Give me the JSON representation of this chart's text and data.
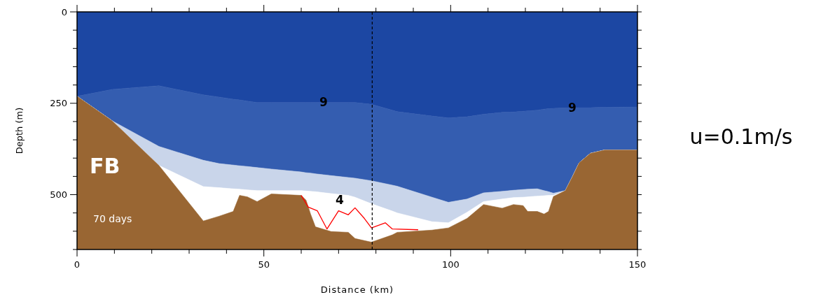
{
  "chart_data": {
    "type": "area",
    "stacked": true,
    "xlabel": "Distance (km)",
    "ylabel": "Depth (m)",
    "xlim": [
      0,
      150
    ],
    "ylim": [
      650,
      0
    ],
    "xticks": [
      0,
      {
        "value": 10,
        "label": null
      },
      {
        "value": 20,
        "label": null
      },
      {
        "value": 30,
        "label": null
      },
      {
        "value": 40,
        "label": null
      },
      50,
      {
        "value": 60,
        "label": null
      },
      {
        "value": 70,
        "label": null
      },
      {
        "value": 80,
        "label": null
      },
      {
        "value": 90,
        "label": null
      },
      100,
      {
        "value": 110,
        "label": null
      },
      {
        "value": 120,
        "label": null
      },
      {
        "value": 130,
        "label": null
      },
      {
        "value": 140,
        "label": null
      },
      150
    ],
    "yticks": [
      0,
      {
        "value": 50,
        "label": null
      },
      {
        "value": 100,
        "label": null
      },
      {
        "value": 150,
        "label": null
      },
      {
        "value": 200,
        "label": null
      },
      250,
      {
        "value": 300,
        "label": null
      },
      {
        "value": 350,
        "label": null
      },
      {
        "value": 400,
        "label": null
      },
      {
        "value": 450,
        "label": null
      },
      500,
      {
        "value": 550,
        "label": null
      },
      {
        "value": 600,
        "label": null
      },
      {
        "value": 650,
        "label": null
      }
    ],
    "x": [
      0,
      9.4,
      21.9,
      33.8,
      38,
      41.8,
      43.5,
      45.6,
      48.2,
      52,
      60,
      61.3,
      62.5,
      63.8,
      68,
      72.6,
      74.4,
      78.8,
      84.4,
      85.7,
      95,
      99.4,
      104.4,
      108.8,
      113.8,
      116.8,
      119.4,
      120.6,
      123.2,
      125,
      126.2,
      127.5,
      130.7,
      132.6,
      134.4,
      137.4,
      141.2,
      150
    ],
    "series": [
      {
        "color": "#1c47a3",
        "values": [
          231,
          212,
          202,
          227,
          233,
          239,
          241,
          244,
          248,
          248,
          248,
          248,
          248,
          248,
          248,
          248,
          248,
          253,
          269,
          273,
          285,
          290,
          287,
          280,
          275,
          274,
          272,
          271,
          269,
          266,
          265,
          264,
          263,
          263,
          262,
          262,
          261,
          260
        ]
      },
      {
        "color": "#345db0",
        "values": [
          0,
          86,
          166,
          179,
          182,
          180,
          180,
          179,
          178,
          182,
          190,
          192,
          193,
          195,
          200,
          205,
          207,
          209,
          205,
          204,
          222,
          231,
          225,
          215,
          216,
          214,
          214,
          214,
          215,
          223,
          227,
          232,
          226,
          188,
          151,
          125,
          117,
          118
        ]
      },
      {
        "color": "#c9d5ea",
        "values": [
          0,
          0,
          52,
          72,
          66,
          65,
          64,
          64,
          63,
          59,
          51,
          50,
          50,
          49,
          49,
          49,
          52,
          63,
          71,
          73,
          67,
          56,
          36,
          24,
          21,
          20,
          21,
          21,
          20,
          14,
          10,
          6,
          0,
          0,
          0,
          0,
          0,
          0
        ]
      },
      {
        "color": "#ffffff",
        "values": [
          0,
          0,
          0,
          94,
          78,
          62,
          17,
          19,
          30,
          9,
          13,
          25,
          62,
          96,
          104,
          101,
          113,
          105,
          65,
          53,
          23,
          14,
          17,
          8,
          25,
          19,
          23,
          40,
          42,
          50,
          44,
          3,
          0,
          0,
          0,
          0,
          0,
          0
        ]
      },
      {
        "color": "#996633",
        "values": [
          419,
          352,
          230,
          78,
          91,
          104,
          148,
          144,
          131,
          152,
          148,
          135,
          97,
          62,
          49,
          47,
          30,
          20,
          40,
          47,
          53,
          59,
          85,
          123,
          113,
          123,
          120,
          104,
          104,
          97,
          104,
          145,
          161,
          199,
          237,
          263,
          272,
          272
        ]
      },
      {
        "type": "line",
        "color": "#ff0000",
        "x": [
          60,
          61.9,
          64.3,
          66.9,
          70,
          72.6,
          74.4,
          76.9,
          78.8,
          82.5,
          84.4,
          91.3
        ],
        "values": [
          502,
          534,
          544,
          594,
          544,
          555,
          536,
          565,
          591,
          577,
          594,
          596
        ]
      }
    ],
    "ref_lines": [
      {
        "axis": "x",
        "value": 79,
        "color": "#000000",
        "line_style": "dashed"
      }
    ],
    "annotations": [
      "9",
      "9",
      "4",
      "FB",
      "70 days",
      "u=0.1m/s"
    ]
  }
}
